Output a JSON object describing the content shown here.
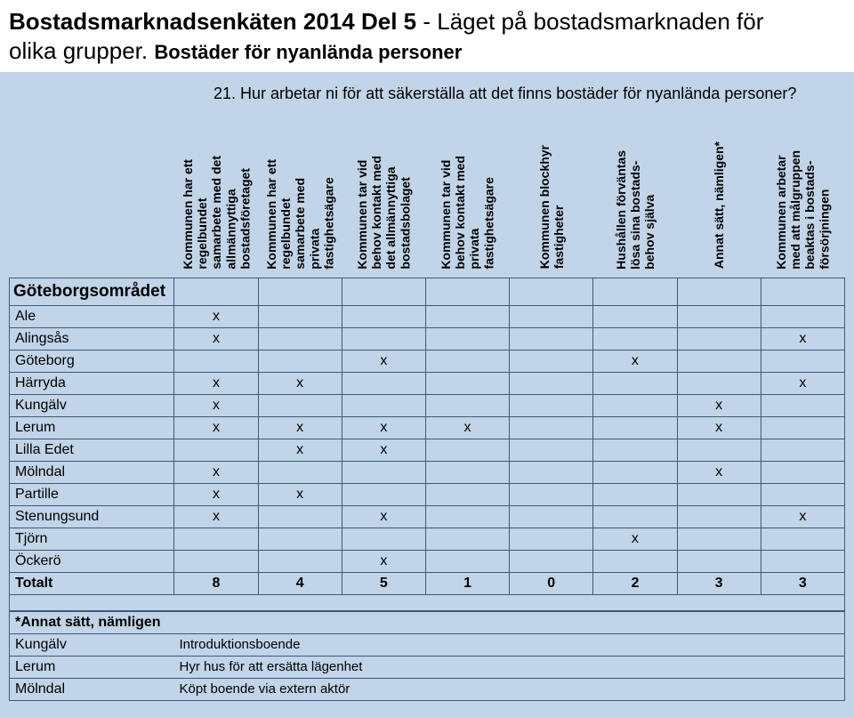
{
  "colors": {
    "background": "#c1d4e8",
    "title_bg": "#ffffff",
    "border": "#3b5b7b",
    "text": "#000000"
  },
  "title": {
    "bold_prefix": "Bostadsmarknadsenkäten 2014 Del 5",
    "rest_line1": " - Läget på bostadsmarknaden för",
    "rest_line2": "olika grupper. ",
    "sub_bold": "Bostäder för nyanlända personer"
  },
  "question": "21. Hur arbetar ni för att säkerställa att det finns bostäder för nyanlända personer?",
  "columns": [
    "Kommunen har ett\nregelbundet\nsamarbete med det\nallmännyttiga\nbostadsföretaget",
    "Kommunen har ett\nregelbundet\nsamarbete med\nprivata\nfastighetsägare",
    "Kommunen tar vid\nbehov kontakt med\ndet allmännyttiga\nbostadsbolaget",
    "Kommunen tar vid\nbehov kontakt med\nprivata\nfastighetsägare",
    "Kommunen blockhyr\nfastigheter",
    "Hushållen förväntas\nlösa sina bostads-\nbehov själva",
    "Annat sätt, nämligen*",
    "Kommunen arbetar\nmed att målgruppen\nbeaktas i bostads-\nförsörjningen"
  ],
  "region": "Göteborgsområdet",
  "rows": [
    {
      "name": "Ale",
      "cells": [
        "x",
        "",
        "",
        "",
        "",
        "",
        "",
        ""
      ]
    },
    {
      "name": "Alingsås",
      "cells": [
        "x",
        "",
        "",
        "",
        "",
        "",
        "",
        "x"
      ]
    },
    {
      "name": "Göteborg",
      "cells": [
        "",
        "",
        "x",
        "",
        "",
        "x",
        "",
        ""
      ]
    },
    {
      "name": "Härryda",
      "cells": [
        "x",
        "x",
        "",
        "",
        "",
        "",
        "",
        "x"
      ]
    },
    {
      "name": "Kungälv",
      "cells": [
        "x",
        "",
        "",
        "",
        "",
        "",
        "x",
        ""
      ]
    },
    {
      "name": "Lerum",
      "cells": [
        "x",
        "x",
        "x",
        "x",
        "",
        "",
        "x",
        ""
      ]
    },
    {
      "name": "Lilla Edet",
      "cells": [
        "",
        "x",
        "x",
        "",
        "",
        "",
        "",
        ""
      ]
    },
    {
      "name": "Mölndal",
      "cells": [
        "x",
        "",
        "",
        "",
        "",
        "",
        "x",
        ""
      ]
    },
    {
      "name": "Partille",
      "cells": [
        "x",
        "x",
        "",
        "",
        "",
        "",
        "",
        ""
      ]
    },
    {
      "name": "Stenungsund",
      "cells": [
        "x",
        "",
        "x",
        "",
        "",
        "",
        "",
        "x"
      ]
    },
    {
      "name": "Tjörn",
      "cells": [
        "",
        "",
        "",
        "",
        "",
        "x",
        "",
        ""
      ]
    },
    {
      "name": "Öckerö",
      "cells": [
        "",
        "",
        "x",
        "",
        "",
        "",
        "",
        ""
      ]
    }
  ],
  "total": {
    "label": "Totalt",
    "cells": [
      "8",
      "4",
      "5",
      "1",
      "0",
      "2",
      "3",
      "3"
    ]
  },
  "annat": {
    "heading": "*Annat sätt, nämligen",
    "items": [
      {
        "k": "Kungälv",
        "v": "Introduktionsboende"
      },
      {
        "k": "Lerum",
        "v": "Hyr hus för att ersätta lägenhet"
      },
      {
        "k": "Mölndal",
        "v": "Köpt boende via extern aktör"
      }
    ]
  }
}
